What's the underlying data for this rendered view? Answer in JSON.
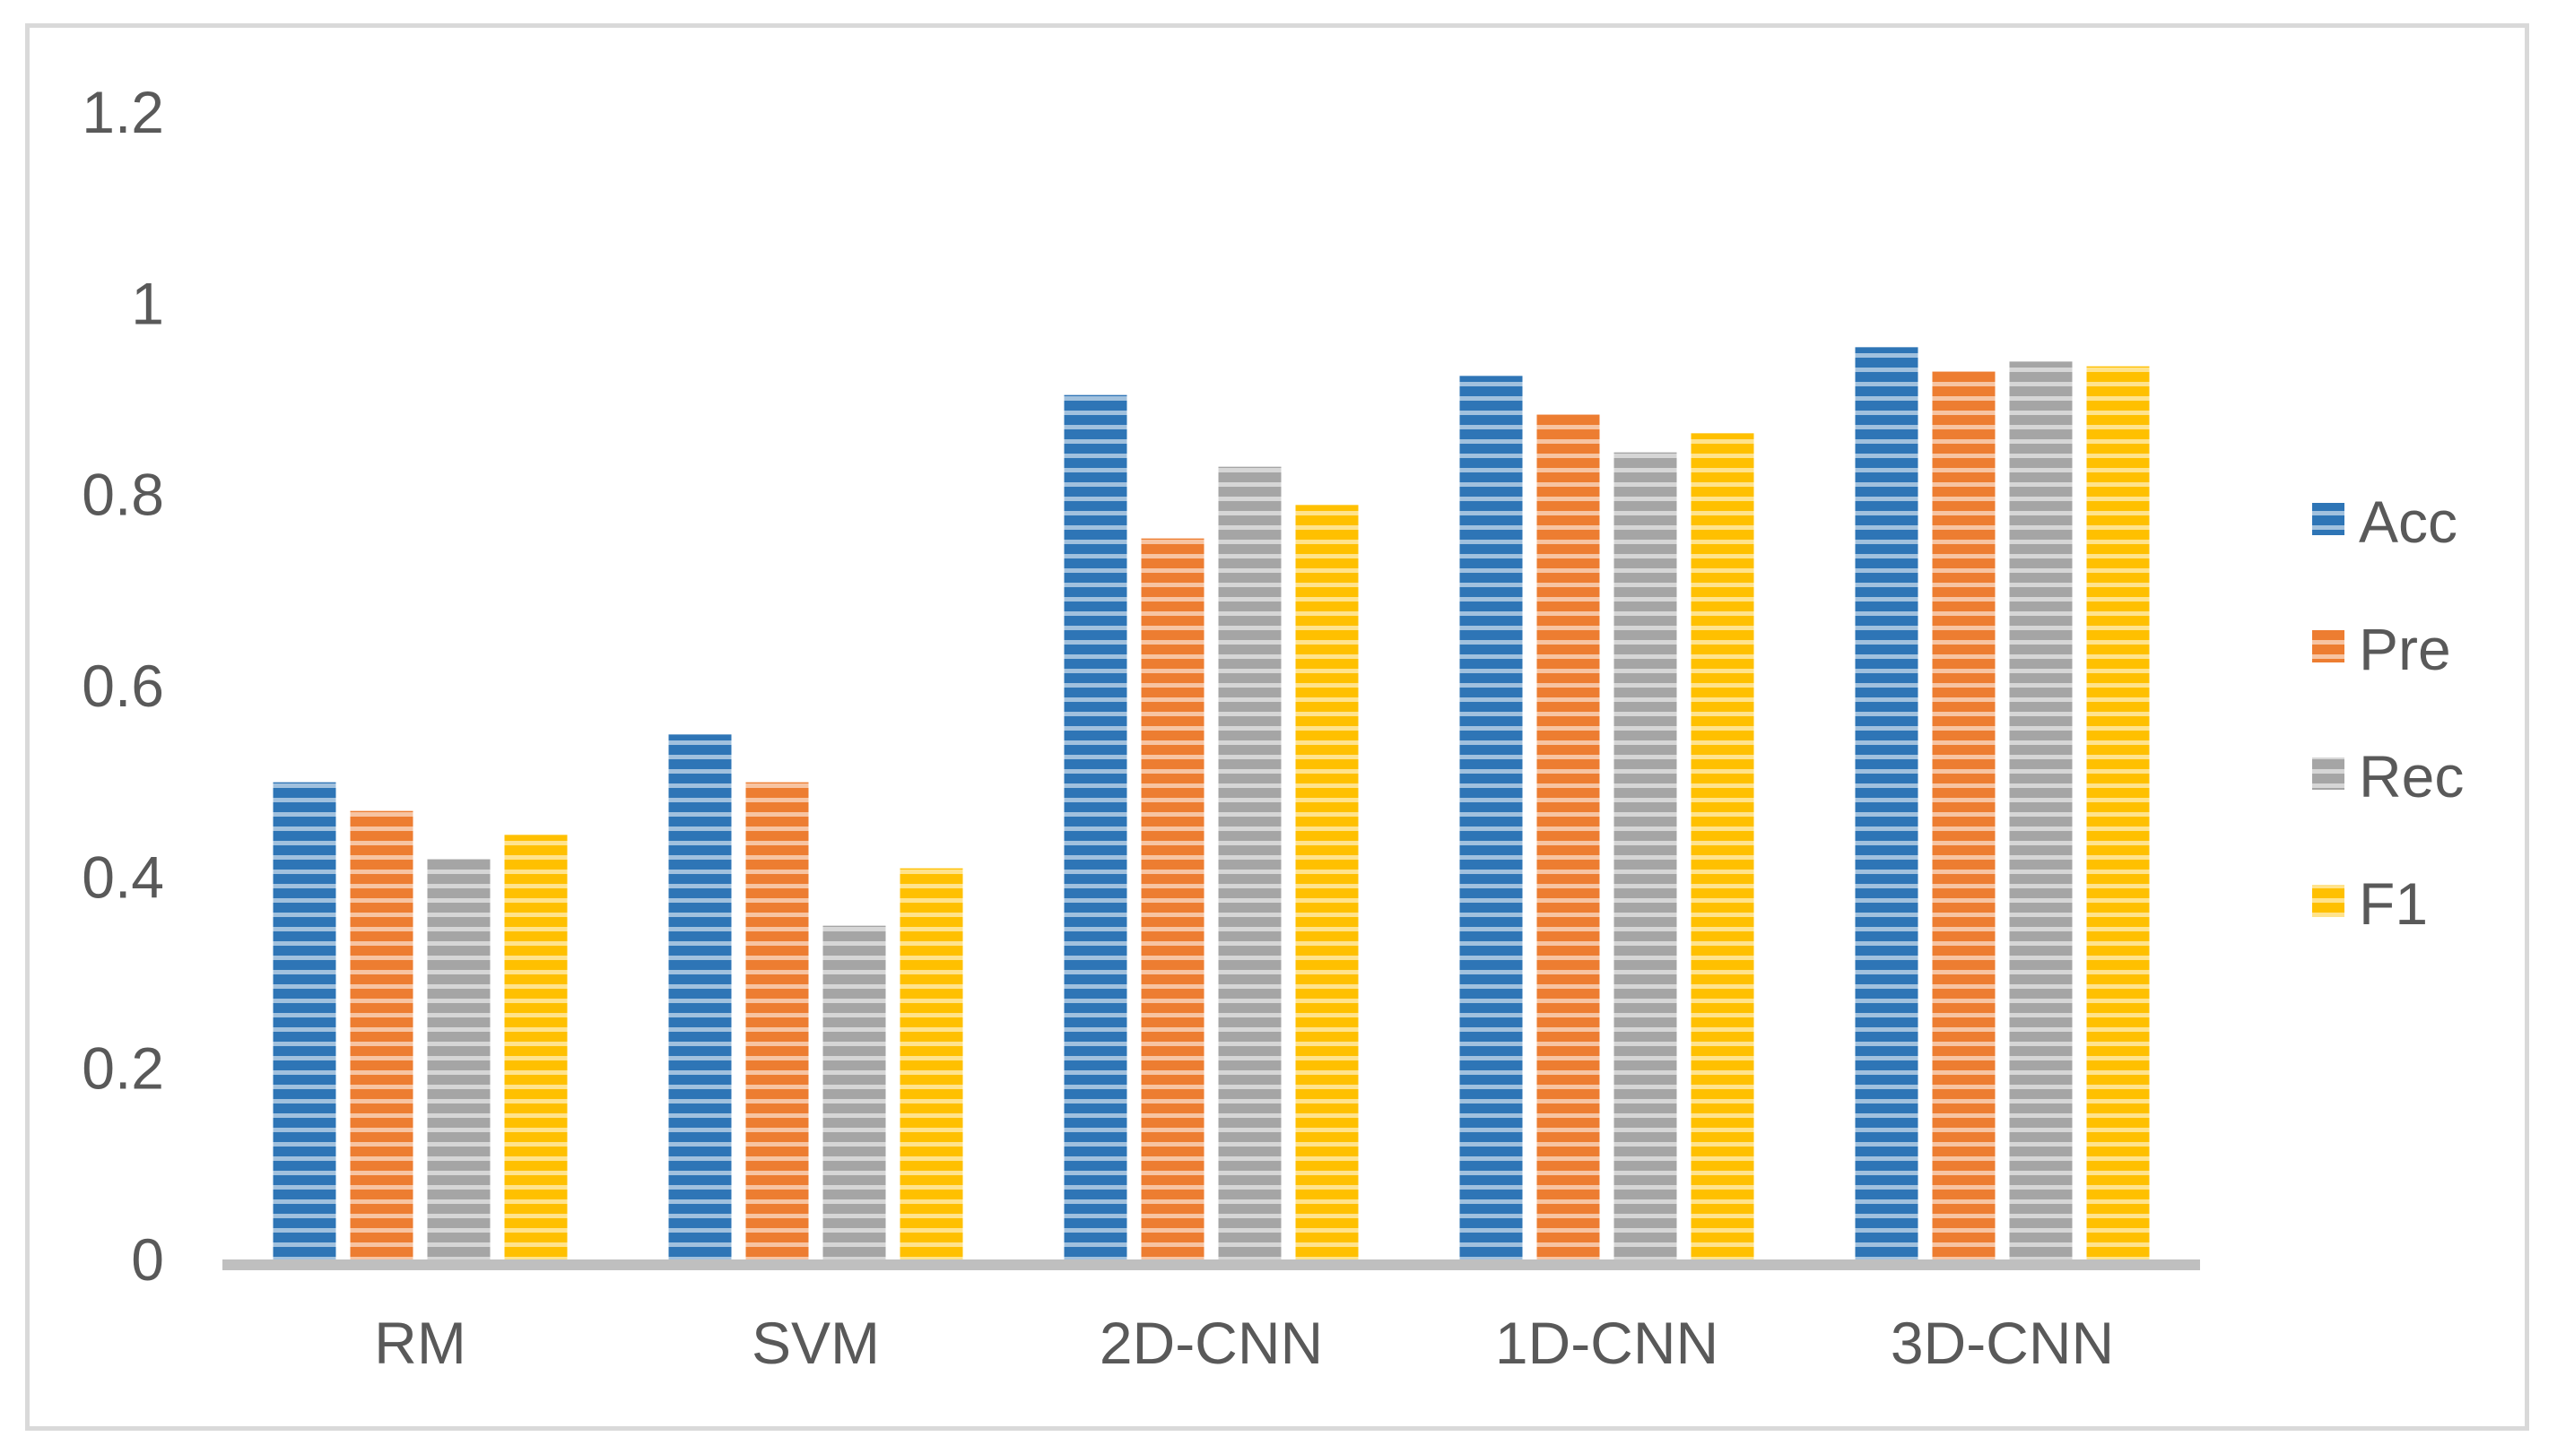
{
  "chart_data": {
    "type": "bar",
    "title": "",
    "xlabel": "",
    "ylabel": "",
    "categories": [
      "RM",
      "SVM",
      "2D-CNN",
      "1D-CNN",
      "3D-CNN"
    ],
    "series": [
      {
        "name": "Acc",
        "color": "#2e75b6",
        "values": [
          0.5,
          0.55,
          0.905,
          0.925,
          0.955
        ]
      },
      {
        "name": "Pre",
        "color": "#ed7d31",
        "values": [
          0.47,
          0.5,
          0.755,
          0.885,
          0.93
        ]
      },
      {
        "name": "Rec",
        "color": "#a5a5a5",
        "values": [
          0.42,
          0.35,
          0.83,
          0.845,
          0.94
        ]
      },
      {
        "name": "F1",
        "color": "#ffc000",
        "values": [
          0.445,
          0.41,
          0.79,
          0.865,
          0.935
        ]
      }
    ],
    "ylim": [
      0,
      1.2
    ],
    "yticks": [
      "0",
      "0.2",
      "0.4",
      "0.6",
      "0.8",
      "1",
      "1.2"
    ],
    "grid": false,
    "legend_position": "right",
    "bar_pattern": "horizontal-stripes"
  }
}
